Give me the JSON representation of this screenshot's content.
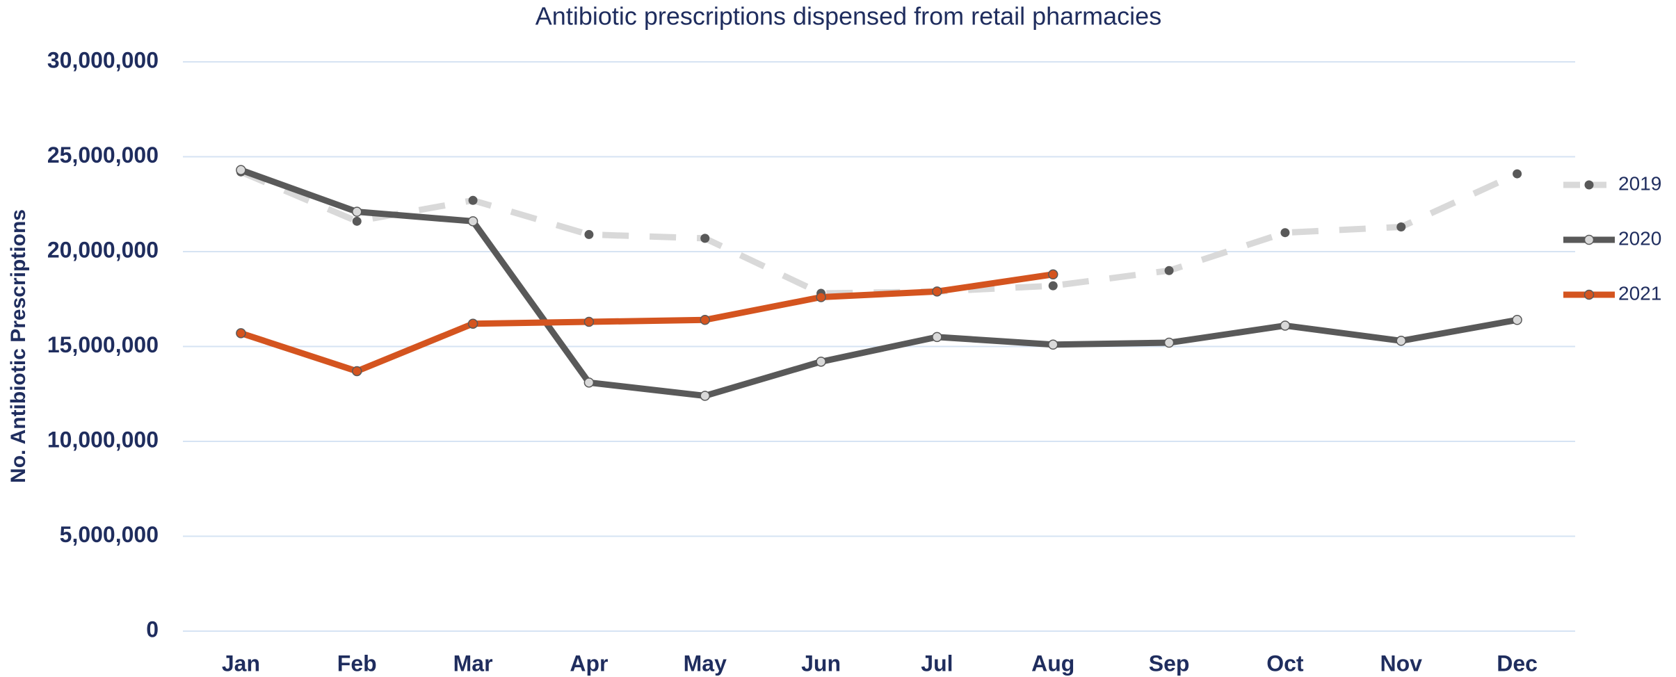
{
  "chart_data": {
    "type": "line",
    "title": "Antibiotic prescriptions dispensed from retail pharmacies",
    "y_label": "No. Antibiotic Prescriptions",
    "categories": [
      "Jan",
      "Feb",
      "Mar",
      "Apr",
      "May",
      "Jun",
      "Jul",
      "Aug",
      "Sep",
      "Oct",
      "Nov",
      "Dec"
    ],
    "series": [
      {
        "name": "2019",
        "color": "#d9d9d9",
        "marker_color": "#595959",
        "line_style": "dashed",
        "values": [
          24200000,
          21600000,
          22700000,
          20900000,
          20700000,
          17800000,
          17900000,
          18200000,
          19000000,
          21000000,
          21300000,
          24100000
        ]
      },
      {
        "name": "2020",
        "color": "#595959",
        "marker_color": "#d9d9d9",
        "line_style": "solid",
        "values": [
          24300000,
          22100000,
          21600000,
          13100000,
          12400000,
          14200000,
          15500000,
          15100000,
          15200000,
          16100000,
          15300000,
          16400000
        ]
      },
      {
        "name": "2021",
        "color": "#d4541f",
        "marker_color": "#d4541f",
        "line_style": "solid",
        "values": [
          15700000,
          13700000,
          16200000,
          16300000,
          16400000,
          17600000,
          17900000,
          18800000,
          null,
          null,
          null,
          null
        ]
      }
    ],
    "ylim": [
      0,
      30000000
    ],
    "yticks": [
      0,
      {
        "value": 5000000,
        "label": "5,000,000"
      },
      {
        "value": 10000000,
        "label": "10,000,000"
      },
      {
        "value": 15000000,
        "label": "15,000,000"
      },
      {
        "value": 20000000,
        "label": "20,000,000"
      },
      {
        "value": 25000000,
        "label": "25,000,000"
      },
      {
        "value": 30000000,
        "label": "30,000,000"
      }
    ],
    "grid": true,
    "legend": "right"
  }
}
